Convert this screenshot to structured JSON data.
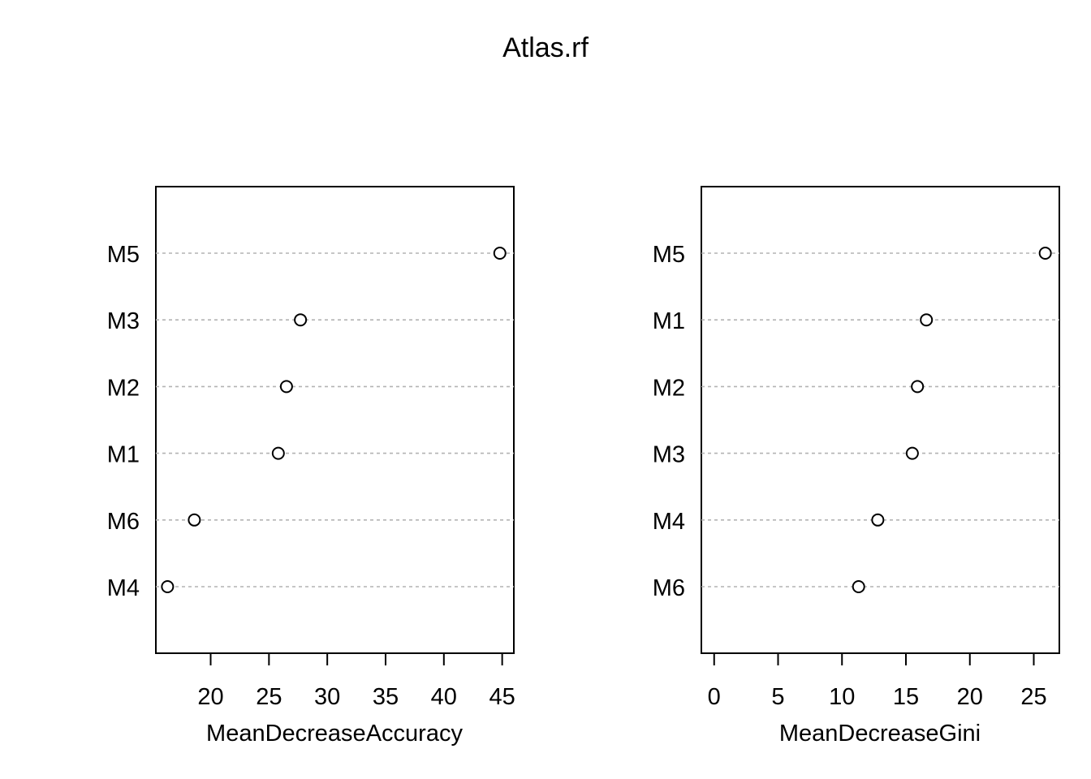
{
  "title": "Atlas.rf",
  "chart_data": [
    {
      "type": "scatter",
      "title": "",
      "xlabel": "MeanDecreaseAccuracy",
      "ylabel": "",
      "categories": [
        "M5",
        "M3",
        "M2",
        "M1",
        "M6",
        "M4"
      ],
      "values": [
        44.8,
        27.7,
        26.5,
        25.8,
        18.6,
        16.3
      ],
      "xlim": [
        15.3,
        46.0
      ],
      "xticks": [
        20,
        25,
        30,
        35,
        40,
        45
      ],
      "grid": "dotted horizontal guide lines"
    },
    {
      "type": "scatter",
      "title": "",
      "xlabel": "MeanDecreaseGini",
      "ylabel": "",
      "categories": [
        "M5",
        "M1",
        "M2",
        "M3",
        "M4",
        "M6"
      ],
      "values": [
        25.9,
        16.6,
        15.9,
        15.5,
        12.8,
        11.3
      ],
      "xlim": [
        -1.0,
        27.0
      ],
      "xticks": [
        0,
        5,
        10,
        15,
        20,
        25
      ],
      "grid": "dotted horizontal guide lines"
    }
  ]
}
